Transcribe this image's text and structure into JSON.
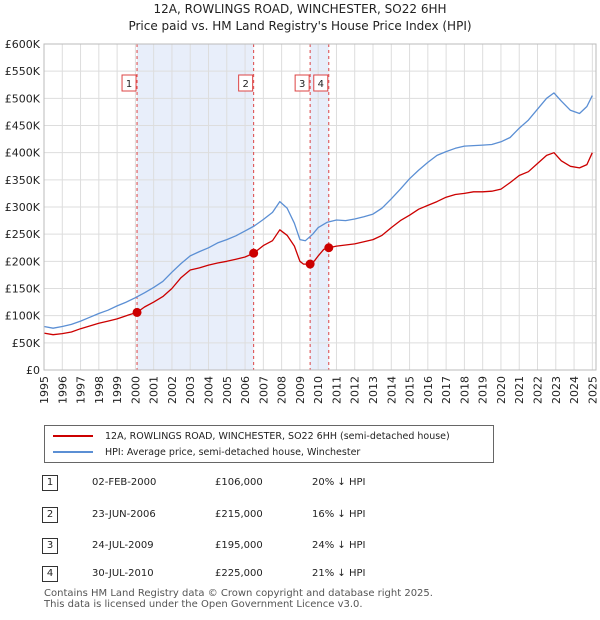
{
  "chart_data": {
    "type": "line",
    "title": "12A, ROWLINGS ROAD, WINCHESTER, SO22 6HH",
    "subtitle": "Price paid vs. HM Land Registry's House Price Index (HPI)",
    "xlim": [
      1995,
      2025.2
    ],
    "ylim": [
      0,
      600000
    ],
    "y_ticks": [
      {
        "value": 0,
        "label": "£0"
      },
      {
        "value": 50000,
        "label": "£50K"
      },
      {
        "value": 100000,
        "label": "£100K"
      },
      {
        "value": 150000,
        "label": "£150K"
      },
      {
        "value": 200000,
        "label": "£200K"
      },
      {
        "value": 250000,
        "label": "£250K"
      },
      {
        "value": 300000,
        "label": "£300K"
      },
      {
        "value": 350000,
        "label": "£350K"
      },
      {
        "value": 400000,
        "label": "£400K"
      },
      {
        "value": 450000,
        "label": "£450K"
      },
      {
        "value": 500000,
        "label": "£500K"
      },
      {
        "value": 550000,
        "label": "£550K"
      },
      {
        "value": 600000,
        "label": "£600K"
      }
    ],
    "x_ticks": [
      "1995",
      "1996",
      "1997",
      "1998",
      "1999",
      "2000",
      "2001",
      "2002",
      "2003",
      "2004",
      "2005",
      "2006",
      "2007",
      "2008",
      "2009",
      "2010",
      "2011",
      "2012",
      "2013",
      "2014",
      "2015",
      "2016",
      "2017",
      "2018",
      "2019",
      "2020",
      "2021",
      "2022",
      "2023",
      "2024",
      "2025"
    ],
    "grid": true,
    "series": [
      {
        "name": "12A, ROWLINGS ROAD, WINCHESTER, SO22 6HH (semi-detached house)",
        "color": "#cc0000",
        "x": [
          1995,
          1995.5,
          1996,
          1996.5,
          1997,
          1997.5,
          1998,
          1998.5,
          1999,
          1999.5,
          2000.09,
          2000.5,
          2001,
          2001.5,
          2002,
          2002.5,
          2003,
          2003.5,
          2004,
          2004.5,
          2005,
          2005.5,
          2006,
          2006.47,
          2007,
          2007.5,
          2007.9,
          2008.3,
          2008.7,
          2009,
          2009.2,
          2009.56,
          2009.8,
          2010,
          2010.3,
          2010.58,
          2011,
          2011.5,
          2012,
          2012.5,
          2013,
          2013.5,
          2014,
          2014.5,
          2015,
          2015.5,
          2016,
          2016.5,
          2017,
          2017.5,
          2018,
          2018.5,
          2019,
          2019.5,
          2020,
          2020.5,
          2021,
          2021.5,
          2022,
          2022.5,
          2022.9,
          2023.3,
          2023.8,
          2024.3,
          2024.7,
          2025
        ],
        "values": [
          68000,
          65000,
          67000,
          70000,
          76000,
          81000,
          86000,
          90000,
          94000,
          100000,
          106000,
          116000,
          125000,
          135000,
          150000,
          170000,
          184000,
          188000,
          193000,
          197000,
          200000,
          204000,
          208000,
          215000,
          229000,
          238000,
          258000,
          248000,
          228000,
          200000,
          195000,
          195000,
          201000,
          210000,
          222000,
          225000,
          228000,
          230000,
          232000,
          236000,
          240000,
          248000,
          262000,
          275000,
          285000,
          296000,
          303000,
          310000,
          318000,
          323000,
          325000,
          328000,
          328000,
          329000,
          333000,
          345000,
          358000,
          365000,
          380000,
          395000,
          400000,
          385000,
          375000,
          372000,
          378000,
          400000
        ]
      },
      {
        "name": "HPI: Average price, semi-detached house, Winchester",
        "color": "#5b8fd4",
        "x": [
          1995,
          1995.5,
          1996,
          1996.5,
          1997,
          1997.5,
          1998,
          1998.5,
          1999,
          1999.5,
          2000,
          2000.5,
          2001,
          2001.5,
          2002,
          2002.5,
          2003,
          2003.5,
          2004,
          2004.5,
          2005,
          2005.5,
          2006,
          2006.5,
          2007,
          2007.5,
          2007.9,
          2008.3,
          2008.7,
          2009,
          2009.3,
          2009.7,
          2010,
          2010.5,
          2011,
          2011.5,
          2012,
          2012.5,
          2013,
          2013.5,
          2014,
          2014.5,
          2015,
          2015.5,
          2016,
          2016.5,
          2017,
          2017.5,
          2018,
          2018.5,
          2019,
          2019.5,
          2020,
          2020.5,
          2021,
          2021.5,
          2022,
          2022.5,
          2022.9,
          2023.3,
          2023.8,
          2024.3,
          2024.7,
          2025
        ],
        "values": [
          80000,
          77000,
          80000,
          84000,
          90000,
          97000,
          104000,
          110000,
          118000,
          125000,
          133000,
          142000,
          152000,
          163000,
          180000,
          196000,
          210000,
          218000,
          225000,
          234000,
          240000,
          247000,
          256000,
          265000,
          277000,
          290000,
          310000,
          298000,
          270000,
          240000,
          238000,
          250000,
          262000,
          272000,
          276000,
          275000,
          278000,
          282000,
          287000,
          298000,
          315000,
          333000,
          352000,
          368000,
          382000,
          395000,
          402000,
          408000,
          412000,
          413000,
          414000,
          415000,
          420000,
          428000,
          445000,
          460000,
          480000,
          500000,
          510000,
          495000,
          478000,
          472000,
          485000,
          505000
        ]
      }
    ],
    "transactions": [
      {
        "id": "1",
        "x": 2000.09,
        "price": 106000,
        "date": "02-FEB-2000",
        "price_label": "£106,000",
        "hpi": "20% ↓ HPI"
      },
      {
        "id": "2",
        "x": 2006.47,
        "price": 215000,
        "date": "23-JUN-2006",
        "price_label": "£215,000",
        "hpi": "16% ↓ HPI"
      },
      {
        "id": "3",
        "x": 2009.56,
        "price": 195000,
        "date": "24-JUL-2009",
        "price_label": "£195,000",
        "hpi": "24% ↓ HPI"
      },
      {
        "id": "4",
        "x": 2010.58,
        "price": 225000,
        "date": "30-JUL-2010",
        "price_label": "£225,000",
        "hpi": "21% ↓ HPI"
      }
    ],
    "shaded_spans": [
      [
        2000.09,
        2006.47
      ],
      [
        2009.56,
        2010.58
      ]
    ]
  },
  "legend": {
    "price_paid": "12A, ROWLINGS ROAD, WINCHESTER, SO22 6HH (semi-detached house)",
    "hpi": "HPI: Average price, semi-detached house, Winchester"
  },
  "footer": {
    "line1": "Contains HM Land Registry data © Crown copyright and database right 2025.",
    "line2": "This data is licensed under the Open Government Licence v3.0."
  },
  "colors": {
    "price_line": "#cc0000",
    "hpi_line": "#5b8fd4",
    "shade": "#e8eefa",
    "grid": "#dddddd"
  }
}
